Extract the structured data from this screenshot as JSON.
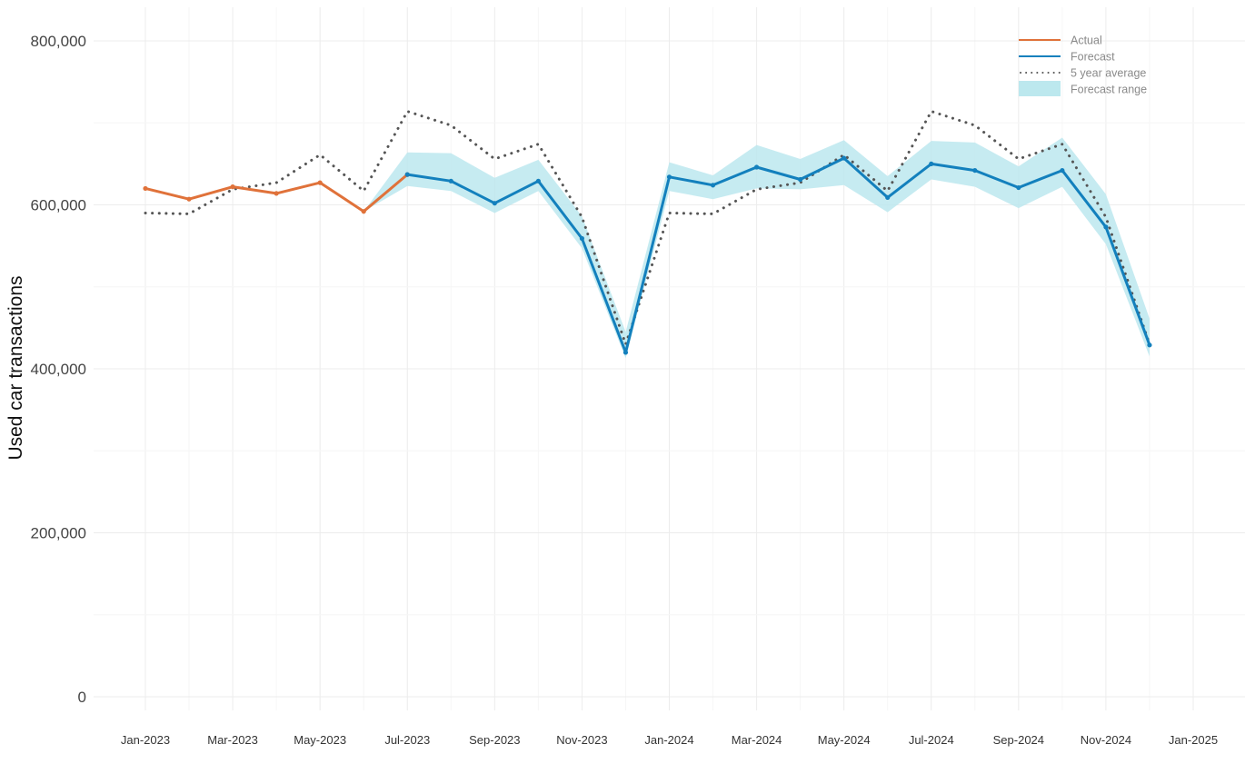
{
  "chart_data": {
    "type": "line",
    "title": "",
    "xlabel": "",
    "ylabel": "Used car transactions",
    "ylim": [
      0,
      800000
    ],
    "y_ticks": [
      0,
      200000,
      400000,
      600000,
      800000
    ],
    "y_tick_labels": [
      "0",
      "200,000",
      "400,000",
      "600,000",
      "800,000"
    ],
    "x_tick_labels": [
      "Jan-2023",
      "Mar-2023",
      "May-2023",
      "Jul-2023",
      "Sep-2023",
      "Nov-2023",
      "Jan-2024",
      "Mar-2024",
      "May-2024",
      "Jul-2024",
      "Sep-2024",
      "Nov-2024",
      "Jan-2025"
    ],
    "x_range": [
      "2023-01",
      "2025-01"
    ],
    "grid": true,
    "legend_position": "top-right",
    "colors": {
      "actual": "#E0723A",
      "forecast": "#1380BD",
      "average": "#555555",
      "range": "#BCE8EE"
    },
    "legend": [
      {
        "label": "Actual",
        "key": "actual",
        "style": "line"
      },
      {
        "label": "Forecast",
        "key": "forecast",
        "style": "line"
      },
      {
        "label": "5 year average",
        "key": "average",
        "style": "dotted"
      },
      {
        "label": "Forecast range",
        "key": "range",
        "style": "area"
      }
    ],
    "series": [
      {
        "name": "Actual",
        "key": "actual",
        "x": [
          "2023-01",
          "2023-02",
          "2023-03",
          "2023-04",
          "2023-05",
          "2023-06",
          "2023-07"
        ],
        "values": [
          620000,
          607000,
          622000,
          614000,
          627000,
          592000,
          637000
        ]
      },
      {
        "name": "Forecast",
        "key": "forecast",
        "x": [
          "2023-07",
          "2023-08",
          "2023-09",
          "2023-10",
          "2023-11",
          "2023-12",
          "2024-01",
          "2024-02",
          "2024-03",
          "2024-04",
          "2024-05",
          "2024-06",
          "2024-07",
          "2024-08",
          "2024-09",
          "2024-10",
          "2024-11",
          "2024-12"
        ],
        "values": [
          637000,
          629000,
          602000,
          629000,
          559000,
          420000,
          634000,
          624000,
          646000,
          631000,
          657000,
          609000,
          650000,
          642000,
          621000,
          642000,
          573000,
          429000
        ]
      },
      {
        "name": "5 year average",
        "key": "average",
        "x": [
          "2023-01",
          "2023-02",
          "2023-03",
          "2023-04",
          "2023-05",
          "2023-06",
          "2023-07",
          "2023-08",
          "2023-09",
          "2023-10",
          "2023-11",
          "2023-12",
          "2024-01",
          "2024-02",
          "2024-03",
          "2024-04",
          "2024-05",
          "2024-06",
          "2024-07",
          "2024-08",
          "2024-09",
          "2024-10",
          "2024-11",
          "2024-12"
        ],
        "values": [
          590000,
          589000,
          619000,
          627000,
          661000,
          617000,
          714000,
          697000,
          656000,
          674000,
          585000,
          430000,
          590000,
          589000,
          619000,
          627000,
          661000,
          617000,
          714000,
          697000,
          656000,
          674000,
          585000,
          430000
        ]
      }
    ],
    "forecast_range": {
      "name": "Forecast range",
      "x": [
        "2023-06",
        "2023-07",
        "2023-08",
        "2023-09",
        "2023-10",
        "2023-11",
        "2023-12",
        "2024-01",
        "2024-02",
        "2024-03",
        "2024-04",
        "2024-05",
        "2024-06",
        "2024-07",
        "2024-08",
        "2024-09",
        "2024-10",
        "2024-11",
        "2024-12"
      ],
      "lower": [
        592000,
        623000,
        617000,
        590000,
        617000,
        547000,
        413000,
        617000,
        607000,
        620000,
        619000,
        624000,
        591000,
        631000,
        622000,
        596000,
        622000,
        552000,
        415000
      ],
      "upper": [
        592000,
        664000,
        663000,
        633000,
        655000,
        586000,
        445000,
        652000,
        636000,
        673000,
        656000,
        679000,
        635000,
        678000,
        676000,
        647000,
        682000,
        613000,
        461000
      ]
    }
  }
}
